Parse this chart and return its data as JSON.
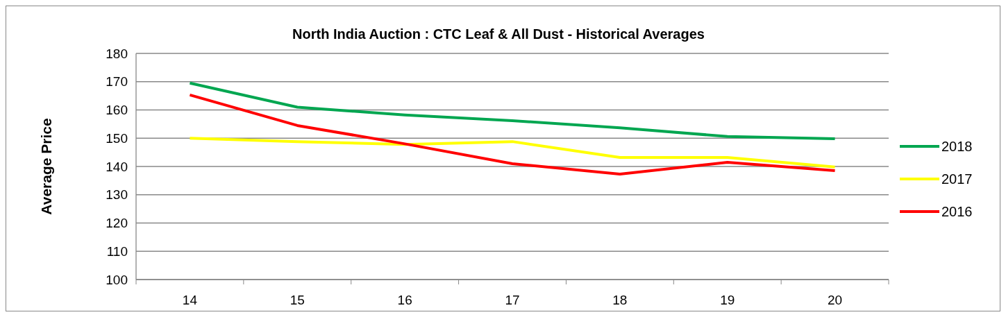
{
  "chart_data": {
    "type": "line",
    "title": "North India Auction : CTC Leaf & All Dust - Historical Averages",
    "ylabel": "Average Price",
    "categories": [
      "14",
      "15",
      "16",
      "17",
      "18",
      "19",
      "20"
    ],
    "series": [
      {
        "name": "2018",
        "color": "#00a650",
        "values": [
          169.5,
          161,
          158.2,
          156.2,
          153.7,
          150.6,
          149.8
        ]
      },
      {
        "name": "2017",
        "color": "#ffff00",
        "values": [
          150,
          148.8,
          147.8,
          148.8,
          143.2,
          143.2,
          139.8
        ]
      },
      {
        "name": "2016",
        "color": "#ff0000",
        "values": [
          165.3,
          154.5,
          148,
          141,
          137.3,
          141.5,
          138.5
        ]
      }
    ],
    "ylim": [
      100,
      180
    ],
    "yticks": [
      100,
      110,
      120,
      130,
      140,
      150,
      160,
      170,
      180
    ],
    "grid": "y",
    "legend": "right",
    "marker": "none",
    "line_style": "solid"
  }
}
